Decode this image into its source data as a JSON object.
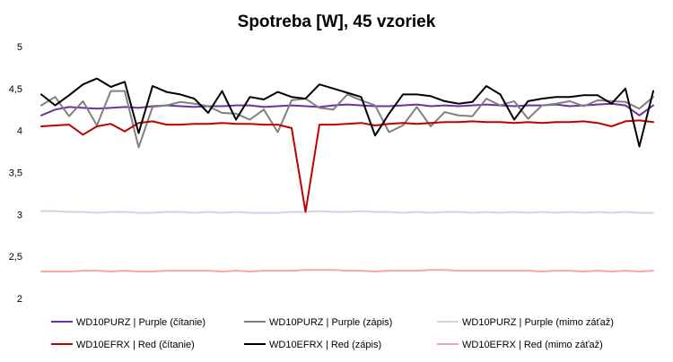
{
  "chart_data": {
    "type": "line",
    "title": "Spotreba [W], 45 vzoriek",
    "xlabel": "",
    "ylabel": "",
    "ylim": [
      2,
      5
    ],
    "y_ticks": [
      "2",
      "2,5",
      "3",
      "3,5",
      "4",
      "4,5",
      "5"
    ],
    "y_tick_values": [
      2,
      2.5,
      3,
      3.5,
      4,
      4.5,
      5
    ],
    "grid": false,
    "legend_position": "bottom",
    "num_samples": 45,
    "series": [
      {
        "name": "WD10PURZ | Purple (čítanie)",
        "color": "#7030a0",
        "values": [
          4.18,
          4.25,
          4.28,
          4.27,
          4.26,
          4.27,
          4.28,
          4.27,
          4.29,
          4.3,
          4.29,
          4.28,
          4.29,
          4.29,
          4.3,
          4.3,
          4.28,
          4.29,
          4.3,
          4.29,
          4.28,
          4.3,
          4.31,
          4.3,
          4.29,
          4.29,
          4.3,
          4.31,
          4.29,
          4.3,
          4.29,
          4.3,
          4.31,
          4.3,
          4.29,
          4.3,
          4.3,
          4.31,
          4.29,
          4.3,
          4.31,
          4.32,
          4.3,
          4.18,
          4.3
        ]
      },
      {
        "name": "WD10PURZ | Purple (zápis)",
        "color": "#808080",
        "values": [
          4.3,
          4.4,
          4.17,
          4.35,
          4.06,
          4.47,
          4.47,
          3.8,
          4.28,
          4.3,
          4.34,
          4.32,
          4.29,
          4.21,
          4.2,
          4.13,
          4.25,
          3.98,
          4.36,
          4.38,
          4.27,
          4.25,
          4.43,
          4.36,
          4.3,
          3.98,
          4.06,
          4.28,
          4.05,
          4.22,
          4.18,
          4.17,
          4.38,
          4.3,
          4.35,
          4.14,
          4.3,
          4.32,
          4.35,
          4.29,
          4.36,
          4.35,
          4.34,
          4.26,
          4.4
        ]
      },
      {
        "name": "WD10PURZ | Purple (mimo záťaž)",
        "color": "#d9cfe6",
        "values": [
          3.04,
          3.04,
          3.03,
          3.03,
          3.02,
          3.03,
          3.03,
          3.02,
          3.02,
          3.03,
          3.03,
          3.02,
          3.03,
          3.02,
          3.03,
          3.02,
          3.02,
          3.02,
          3.03,
          3.03,
          3.04,
          3.03,
          3.03,
          3.04,
          3.03,
          3.03,
          3.02,
          3.03,
          3.02,
          3.03,
          3.03,
          3.02,
          3.03,
          3.02,
          3.03,
          3.02,
          3.03,
          3.02,
          3.03,
          3.02,
          3.03,
          3.02,
          3.03,
          3.02,
          3.02
        ]
      },
      {
        "name": "WD10EFRX | Red (čítanie)",
        "color": "#c00000",
        "values": [
          4.05,
          4.06,
          4.07,
          3.95,
          4.05,
          4.08,
          3.99,
          4.09,
          4.11,
          4.07,
          4.07,
          4.08,
          4.08,
          4.09,
          4.08,
          4.08,
          4.07,
          4.07,
          4.03,
          3.03,
          4.07,
          4.07,
          4.08,
          4.09,
          4.06,
          4.08,
          4.09,
          4.08,
          4.09,
          4.1,
          4.1,
          4.11,
          4.1,
          4.1,
          4.09,
          4.1,
          4.09,
          4.1,
          4.1,
          4.11,
          4.09,
          4.05,
          4.11,
          4.12,
          4.1
        ]
      },
      {
        "name": "WD10EFRX | Red (zápis)",
        "color": "#000000",
        "values": [
          4.43,
          4.3,
          4.42,
          4.55,
          4.62,
          4.52,
          4.58,
          3.97,
          4.53,
          4.46,
          4.43,
          4.38,
          4.21,
          4.47,
          4.13,
          4.4,
          4.37,
          4.46,
          4.4,
          4.38,
          4.55,
          4.5,
          4.45,
          4.4,
          3.94,
          4.2,
          4.43,
          4.43,
          4.41,
          4.35,
          4.32,
          4.34,
          4.53,
          4.43,
          4.13,
          4.35,
          4.38,
          4.4,
          4.4,
          4.42,
          4.42,
          4.32,
          4.5,
          3.81,
          4.47
        ]
      },
      {
        "name": "WD10EFRX | Red (mimo záťaž)",
        "color": "#f4a6a6",
        "values": [
          2.32,
          2.32,
          2.32,
          2.33,
          2.33,
          2.32,
          2.33,
          2.32,
          2.32,
          2.33,
          2.33,
          2.33,
          2.33,
          2.32,
          2.33,
          2.32,
          2.33,
          2.33,
          2.33,
          2.34,
          2.34,
          2.34,
          2.33,
          2.33,
          2.32,
          2.33,
          2.33,
          2.33,
          2.34,
          2.34,
          2.33,
          2.33,
          2.33,
          2.33,
          2.33,
          2.33,
          2.32,
          2.33,
          2.33,
          2.32,
          2.33,
          2.32,
          2.33,
          2.32,
          2.33
        ]
      }
    ]
  }
}
